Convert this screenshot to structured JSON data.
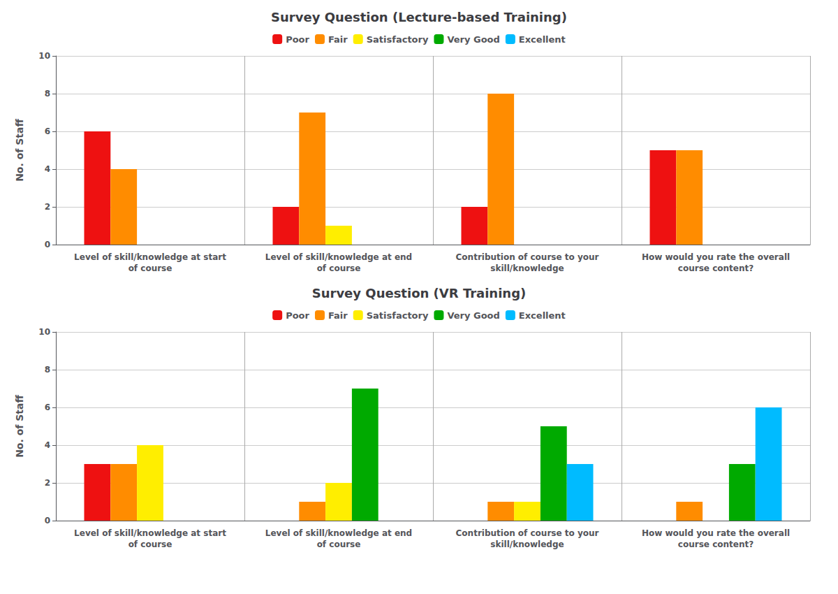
{
  "chart_data": [
    {
      "type": "bar",
      "title": "Survey Question (Lecture-based Training)",
      "categories": [
        "Level of skill/knowledge at start\nof course",
        "Level of skill/knowledge at end\nof course",
        "Contribution of course to your\nskill/knowledge",
        "How would you rate the overall\ncourse content?"
      ],
      "series": [
        {
          "name": "Poor",
          "color": "#ee1111",
          "values": [
            6,
            2,
            2,
            5
          ]
        },
        {
          "name": "Fair",
          "color": "#ff8c00",
          "values": [
            4,
            7,
            8,
            5
          ]
        },
        {
          "name": "Satisfactory",
          "color": "#ffee00",
          "values": [
            0,
            1,
            0,
            0
          ]
        },
        {
          "name": "Very Good",
          "color": "#00aa00",
          "values": [
            0,
            0,
            0,
            0
          ]
        },
        {
          "name": "Excellent",
          "color": "#00bbff",
          "values": [
            0,
            0,
            0,
            0
          ]
        }
      ],
      "ylabel": "No. of Staff",
      "ylim": [
        0,
        10
      ],
      "yticks": [
        0,
        2,
        4,
        6,
        8,
        10
      ],
      "grid": true,
      "legend": "top"
    },
    {
      "type": "bar",
      "title": "Survey Question (VR Training)",
      "categories": [
        "Level of skill/knowledge at start\nof course",
        "Level of skill/knowledge at end\nof course",
        "Contribution of course to your\nskill/knowledge",
        "How would you rate the overall\ncourse content?"
      ],
      "series": [
        {
          "name": "Poor",
          "color": "#ee1111",
          "values": [
            3,
            0,
            0,
            0
          ]
        },
        {
          "name": "Fair",
          "color": "#ff8c00",
          "values": [
            3,
            1,
            1,
            1
          ]
        },
        {
          "name": "Satisfactory",
          "color": "#ffee00",
          "values": [
            4,
            2,
            1,
            0
          ]
        },
        {
          "name": "Very Good",
          "color": "#00aa00",
          "values": [
            0,
            7,
            5,
            3
          ]
        },
        {
          "name": "Excellent",
          "color": "#00bbff",
          "values": [
            0,
            0,
            3,
            6
          ]
        }
      ],
      "ylabel": "No. of Staff",
      "ylim": [
        0,
        10
      ],
      "yticks": [
        0,
        2,
        4,
        6,
        8,
        10
      ],
      "grid": true,
      "legend": "top"
    }
  ]
}
